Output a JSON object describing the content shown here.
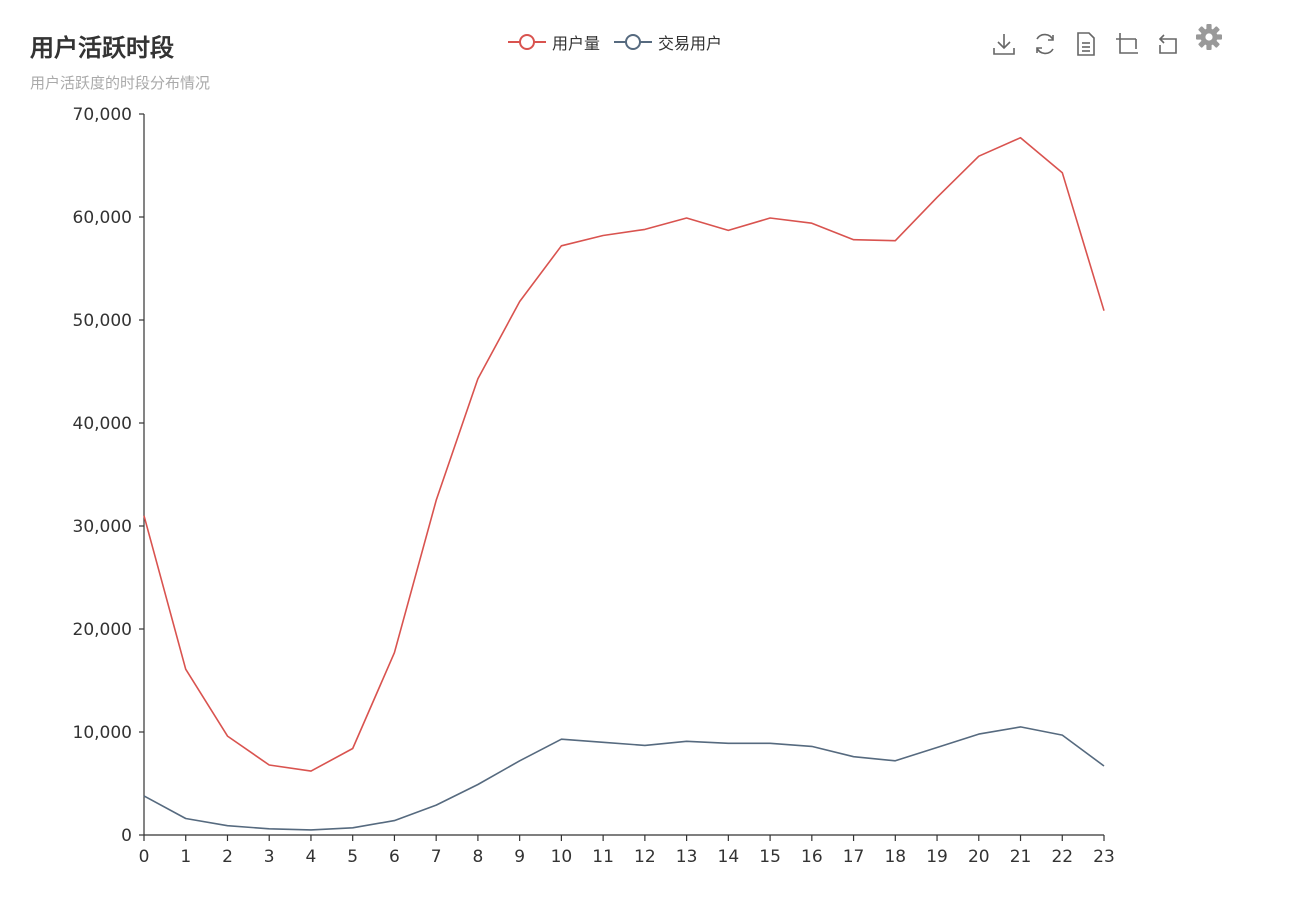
{
  "title": "用户活跃时段",
  "subtitle": "用户活跃度的时段分布情况",
  "legend": [
    {
      "name": "用户量",
      "color": "#d9534f"
    },
    {
      "name": "交易用户",
      "color": "#566a7f"
    }
  ],
  "toolbox": {
    "icons": [
      "download-icon",
      "refresh-icon",
      "data-view-icon",
      "zoom-icon",
      "zoom-reset-icon",
      "gear-icon"
    ]
  },
  "chart_data": {
    "type": "line",
    "title": "用户活跃时段",
    "subtitle": "用户活跃度的时段分布情况",
    "x": [
      "0",
      "1",
      "2",
      "3",
      "4",
      "5",
      "6",
      "7",
      "8",
      "9",
      "10",
      "11",
      "12",
      "13",
      "14",
      "15",
      "16",
      "17",
      "18",
      "19",
      "20",
      "21",
      "22",
      "23"
    ],
    "ylim": [
      0,
      70000
    ],
    "yticks": [
      "0",
      "10,000",
      "20,000",
      "30,000",
      "40,000",
      "50,000",
      "60,000",
      "70,000"
    ],
    "ytick_values": [
      0,
      10000,
      20000,
      30000,
      40000,
      50000,
      60000,
      70000
    ],
    "grid": false,
    "legend_position": "top-center",
    "series": [
      {
        "name": "用户量",
        "color": "#d9534f",
        "values": [
          31000,
          16100,
          9600,
          6800,
          6200,
          8400,
          17700,
          32500,
          44300,
          51800,
          57200,
          58200,
          58800,
          59900,
          58700,
          59900,
          59400,
          57800,
          57700,
          61900,
          65900,
          67700,
          64300,
          50900
        ]
      },
      {
        "name": "交易用户",
        "color": "#566a7f",
        "values": [
          3800,
          1600,
          900,
          600,
          500,
          700,
          1400,
          2900,
          4900,
          7200,
          9300,
          9000,
          8700,
          9100,
          8900,
          8900,
          8600,
          7600,
          7200,
          8500,
          9800,
          10500,
          9700,
          6700
        ]
      }
    ]
  }
}
